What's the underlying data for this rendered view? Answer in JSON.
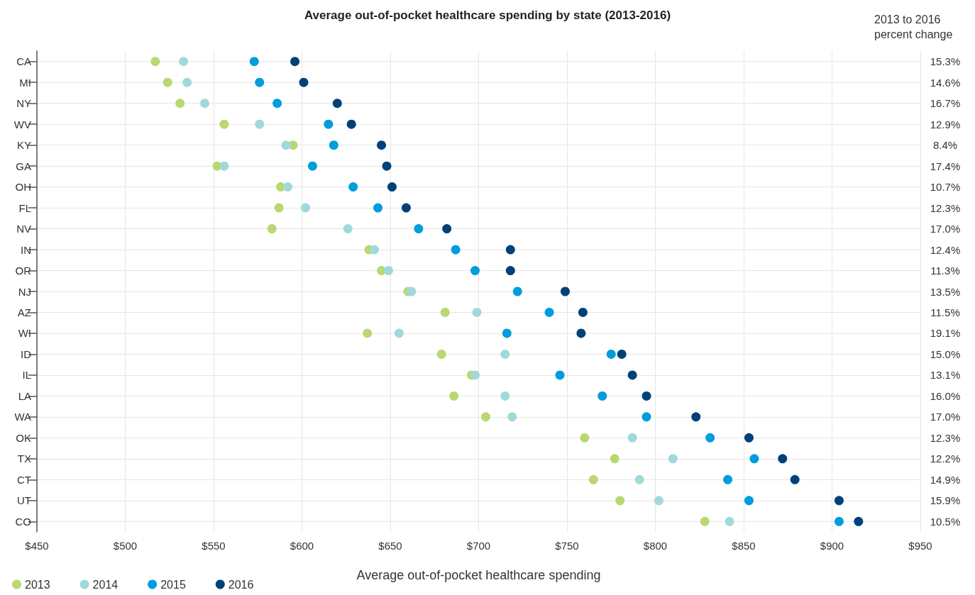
{
  "chart_data": {
    "type": "scatter",
    "title": "Average out-of-pocket healthcare spending by state (2013-2016)",
    "xlabel": "Average out-of-pocket healthcare spending",
    "y2label": "2013 to 2016 percent change",
    "orientation": "horizontal",
    "categories": [
      "CA",
      "MI",
      "NY",
      "WV",
      "KY",
      "GA",
      "OH",
      "FL",
      "NV",
      "IN",
      "OR",
      "NJ",
      "AZ",
      "WI",
      "ID",
      "IL",
      "LA",
      "WA",
      "OK",
      "TX",
      "CT",
      "UT",
      "CO"
    ],
    "y2_categories": [
      "15.3%",
      "14.6%",
      "16.7%",
      "12.9%",
      "8.4%",
      "17.4%",
      "10.7%",
      "12.3%",
      "17.0%",
      "12.4%",
      "11.3%",
      "13.5%",
      "11.5%",
      "19.1%",
      "15.0%",
      "13.1%",
      "16.0%",
      "17.0%",
      "12.3%",
      "12.2%",
      "14.9%",
      "15.9%",
      "10.5%"
    ],
    "xlim": [
      450,
      950
    ],
    "xticks": [
      {
        "value": 450,
        "label": "$450"
      },
      {
        "value": 500,
        "label": "$500"
      },
      {
        "value": 550,
        "label": "$550"
      },
      {
        "value": 600,
        "label": "$600"
      },
      {
        "value": 650,
        "label": "$650"
      },
      {
        "value": 700,
        "label": "$700"
      },
      {
        "value": 750,
        "label": "$750"
      },
      {
        "value": 800,
        "label": "$800"
      },
      {
        "value": 850,
        "label": "$850"
      },
      {
        "value": 900,
        "label": "$900"
      },
      {
        "value": 950,
        "label": "$950"
      }
    ],
    "series": [
      {
        "name": "2013",
        "color": "#b9d872",
        "values": [
          517,
          524,
          531,
          556,
          595,
          552,
          588,
          587,
          583,
          638,
          645,
          660,
          681,
          637,
          679,
          696,
          686,
          704,
          760,
          777,
          765,
          780,
          828
        ]
      },
      {
        "name": "2014",
        "color": "#a1d9db",
        "values": [
          533,
          535,
          545,
          576,
          591,
          556,
          592,
          602,
          626,
          641,
          649,
          662,
          699,
          655,
          715,
          698,
          715,
          719,
          787,
          810,
          791,
          802,
          842
        ]
      },
      {
        "name": "2015",
        "color": "#009ddc",
        "values": [
          573,
          576,
          586,
          615,
          618,
          606,
          629,
          643,
          666,
          687,
          698,
          722,
          740,
          716,
          775,
          746,
          770,
          795,
          831,
          856,
          841,
          853,
          904
        ]
      },
      {
        "name": "2016",
        "color": "#00417a",
        "values": [
          596,
          601,
          620,
          628,
          645,
          648,
          651,
          659,
          682,
          718,
          718,
          749,
          759,
          758,
          781,
          787,
          795,
          823,
          853,
          872,
          879,
          904,
          915
        ]
      }
    ],
    "grid": true,
    "legend": "bottom left",
    "marker": "circle"
  }
}
